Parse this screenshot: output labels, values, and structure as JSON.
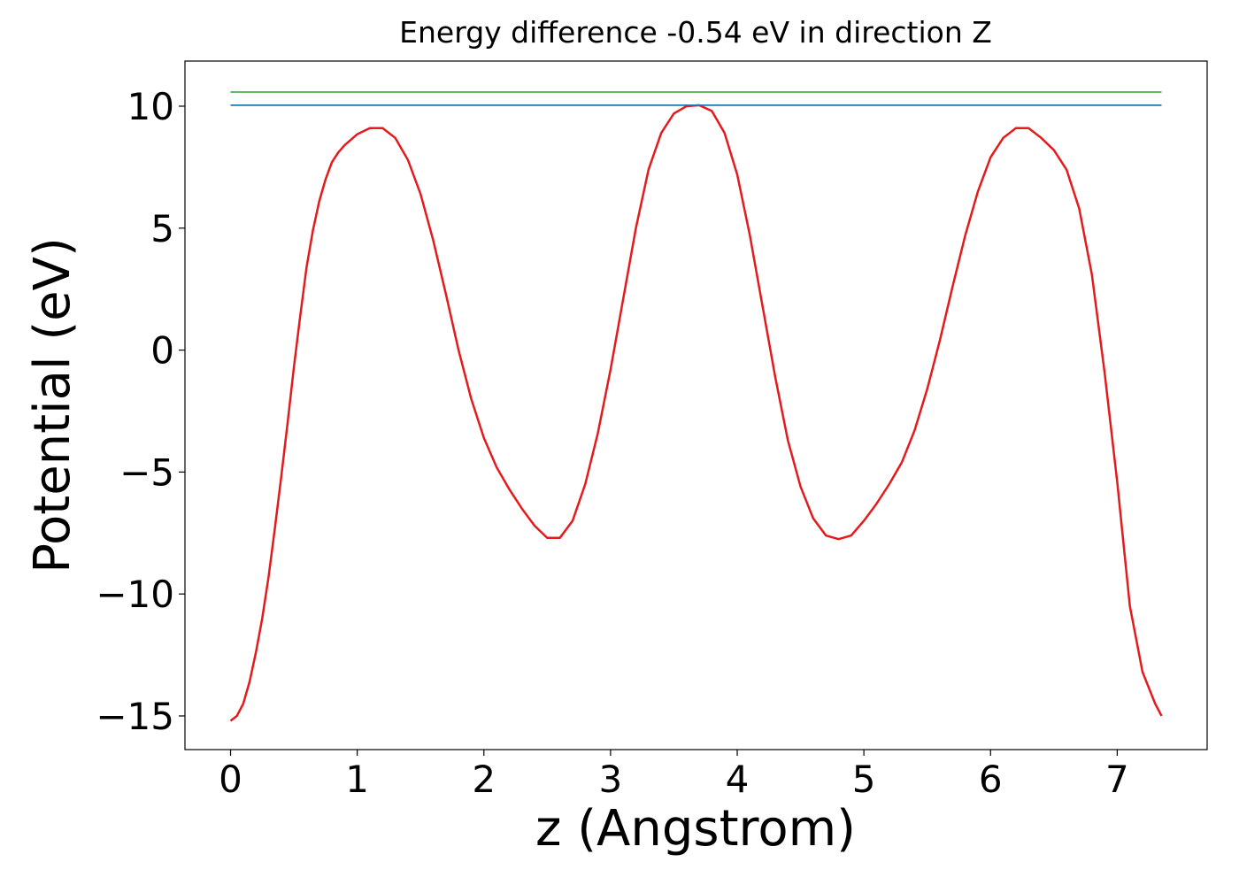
{
  "chart_data": {
    "type": "line",
    "title": "Energy difference -0.54 eV in direction Z",
    "x_label": "z (Angstrom)",
    "y_label": "Potential (eV)",
    "xlim": [
      -0.36,
      7.71
    ],
    "ylim": [
      -16.38,
      11.85
    ],
    "xticks": [
      0,
      1,
      2,
      3,
      4,
      5,
      6,
      7
    ],
    "yticks": [
      {
        "value": -15,
        "label": "−15"
      },
      {
        "value": -10,
        "label": "−10"
      },
      {
        "value": -5,
        "label": "−5"
      },
      0,
      5,
      10
    ],
    "grid": false,
    "series": [
      {
        "color": "#e41a1c",
        "x": [
          0,
          0.05,
          0.1,
          0.15,
          0.2,
          0.25,
          0.3,
          0.35,
          0.4,
          0.45,
          0.5,
          0.55,
          0.6,
          0.65,
          0.7,
          0.75,
          0.8,
          0.85,
          0.9,
          1.0,
          1.1,
          1.2,
          1.3,
          1.4,
          1.5,
          1.6,
          1.7,
          1.8,
          1.9,
          2.0,
          2.1,
          2.2,
          2.3,
          2.4,
          2.5,
          2.6,
          2.7,
          2.8,
          2.9,
          3.0,
          3.1,
          3.2,
          3.3,
          3.4,
          3.5,
          3.6,
          3.7,
          3.8,
          3.9,
          4.0,
          4.1,
          4.2,
          4.3,
          4.4,
          4.5,
          4.6,
          4.7,
          4.8,
          4.9,
          5.0,
          5.1,
          5.2,
          5.3,
          5.4,
          5.5,
          5.6,
          5.7,
          5.8,
          5.9,
          6.0,
          6.1,
          6.2,
          6.3,
          6.4,
          6.5,
          6.6,
          6.7,
          6.8,
          6.9,
          7.0,
          7.1,
          7.2,
          7.3,
          7.35
        ],
        "values": [
          -15.2,
          -15.0,
          -14.5,
          -13.6,
          -12.4,
          -11,
          -9.3,
          -7.3,
          -5.2,
          -3,
          -0.7,
          1.4,
          3.4,
          4.9,
          6.1,
          7,
          7.7,
          8.1,
          8.4,
          8.85,
          9.1,
          9.1,
          8.7,
          7.8,
          6.4,
          4.5,
          2.3,
          0,
          -2,
          -3.6,
          -4.8,
          -5.7,
          -6.5,
          -7.2,
          -7.7,
          -7.7,
          -7.0,
          -5.5,
          -3.4,
          -0.8,
          2.1,
          5,
          7.4,
          8.9,
          9.7,
          10.0,
          10.04,
          9.8,
          8.9,
          7.2,
          4.7,
          1.8,
          -1.1,
          -3.7,
          -5.6,
          -6.9,
          -7.6,
          -7.75,
          -7.6,
          -7.0,
          -6.3,
          -5.5,
          -4.6,
          -3.3,
          -1.6,
          0.4,
          2.6,
          4.7,
          6.5,
          7.9,
          8.7,
          9.1,
          9.1,
          8.7,
          8.2,
          7.4,
          5.8,
          3.1,
          -0.9,
          -5.4,
          -10.5,
          -13.2,
          -14.5,
          -15.0
        ]
      },
      {
        "color": "#1f77b4",
        "x": [
          0,
          7.35
        ],
        "values": [
          10.04,
          10.04
        ]
      },
      {
        "color": "#4daf4a",
        "x": [
          0,
          7.35
        ],
        "values": [
          10.58,
          10.58
        ]
      }
    ]
  }
}
